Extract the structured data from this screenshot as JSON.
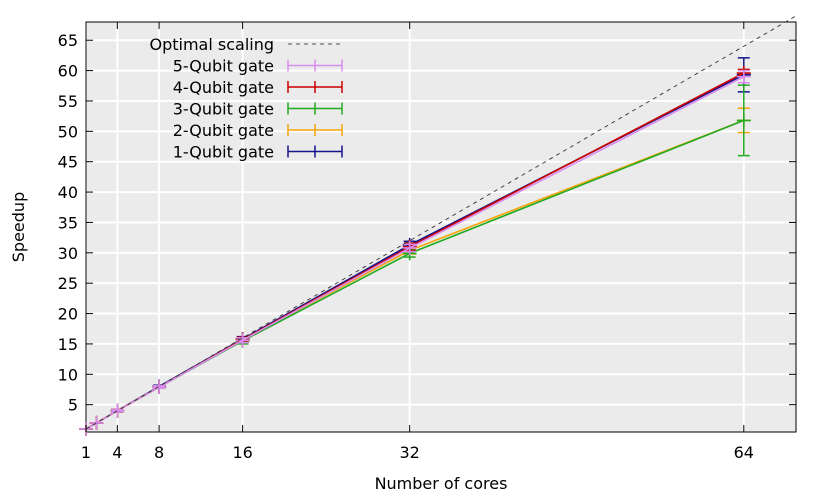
{
  "chart_data": {
    "type": "line",
    "xlabel": "Number of cores",
    "ylabel": "Speedup",
    "xlim": [
      1,
      69
    ],
    "ylim": [
      0.5,
      68
    ],
    "x_ticks": [
      1,
      4,
      8,
      16,
      32,
      64
    ],
    "y_ticks": [
      5,
      10,
      15,
      20,
      25,
      30,
      35,
      40,
      45,
      50,
      55,
      60,
      65
    ],
    "grid": true,
    "legend_position": "top-left",
    "x": [
      1,
      2,
      4,
      8,
      16,
      32,
      64
    ],
    "series": [
      {
        "name": "Optimal scaling",
        "style": "dashed",
        "color": "#7f7f7f",
        "x": [
          1,
          69
        ],
        "values": [
          1,
          69
        ]
      },
      {
        "name": "5-Qubit gate",
        "color": "#d88cf0",
        "values": [
          1,
          2,
          4,
          7.9,
          15.6,
          30.8,
          59.0
        ],
        "errors": [
          0,
          0,
          0.2,
          0.2,
          0.4,
          0.6,
          1.0
        ]
      },
      {
        "name": "4-Qubit gate",
        "color": "#cc0000",
        "values": [
          1,
          2,
          4,
          7.9,
          15.7,
          31.0,
          59.6
        ],
        "errors": [
          0,
          0,
          0.2,
          0.2,
          0.4,
          0.6,
          0.6
        ]
      },
      {
        "name": "3-Qubit gate",
        "color": "#22aa22",
        "values": [
          1,
          2,
          4,
          7.9,
          15.5,
          29.9,
          51.8
        ],
        "errors": [
          0,
          0,
          0.2,
          0.2,
          0.5,
          0.6,
          5.8
        ]
      },
      {
        "name": "2-Qubit gate",
        "color": "#f5a40a",
        "values": [
          1,
          2,
          4,
          7.9,
          15.7,
          30.4,
          51.8
        ],
        "errors": [
          0,
          0,
          0.2,
          0.2,
          0.4,
          0.6,
          2.0
        ]
      },
      {
        "name": "1-Qubit gate",
        "color": "#14148c",
        "values": [
          1,
          2,
          4,
          8.0,
          15.8,
          31.3,
          59.3
        ],
        "errors": [
          0,
          0,
          0.2,
          0.2,
          0.4,
          0.6,
          2.8
        ]
      }
    ]
  }
}
